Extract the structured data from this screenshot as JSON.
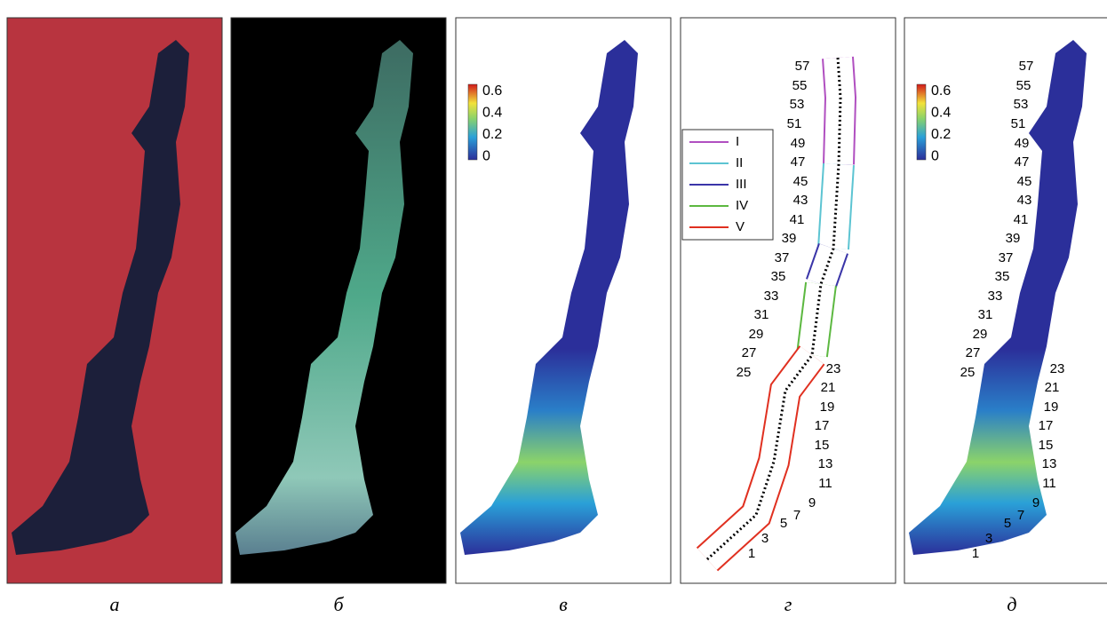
{
  "panels": [
    {
      "label": "а"
    },
    {
      "label": "б"
    },
    {
      "label": "в",
      "colorbar": [
        0.6,
        0.4,
        0.2,
        0
      ]
    },
    {
      "label": "г",
      "legend": [
        {
          "name": "I",
          "color": "#b04fc0"
        },
        {
          "name": "II",
          "color": "#5cc4d2"
        },
        {
          "name": "III",
          "color": "#3a35a8"
        },
        {
          "name": "IV",
          "color": "#5cb840"
        },
        {
          "name": "V",
          "color": "#e03020"
        }
      ],
      "section_numbers": [
        1,
        3,
        5,
        7,
        9,
        11,
        13,
        15,
        17,
        19,
        21,
        23,
        25,
        27,
        29,
        31,
        33,
        35,
        37,
        39,
        41,
        43,
        45,
        47,
        49,
        51,
        53,
        55,
        57
      ]
    },
    {
      "label": "д",
      "colorbar": [
        0.6,
        0.4,
        0.2,
        0
      ],
      "section_numbers": [
        1,
        3,
        5,
        7,
        9,
        11,
        13,
        15,
        17,
        19,
        21,
        23,
        25,
        27,
        29,
        31,
        33,
        35,
        37,
        39,
        41,
        43,
        45,
        47,
        49,
        51,
        53,
        55,
        57
      ]
    }
  ]
}
